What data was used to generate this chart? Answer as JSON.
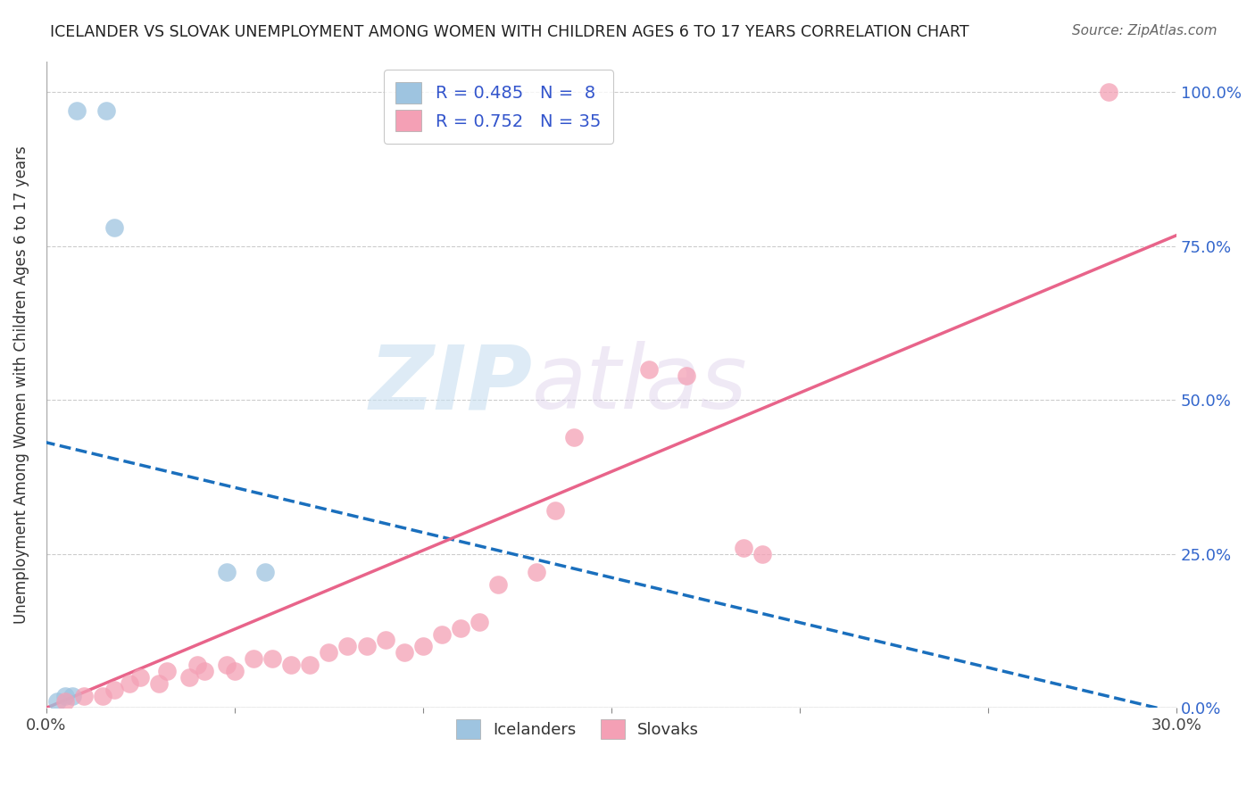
{
  "title": "ICELANDER VS SLOVAK UNEMPLOYMENT AMONG WOMEN WITH CHILDREN AGES 6 TO 17 YEARS CORRELATION CHART",
  "source": "Source: ZipAtlas.com",
  "ylabel": "Unemployment Among Women with Children Ages 6 to 17 years",
  "x_min": 0.0,
  "x_max": 0.3,
  "y_min": 0.0,
  "y_max": 1.05,
  "y_ticks": [
    0.0,
    0.25,
    0.5,
    0.75,
    1.0
  ],
  "y_tick_labels": [
    "0.0%",
    "25.0%",
    "50.0%",
    "75.0%",
    "100.0%"
  ],
  "iceland_R": 0.485,
  "iceland_N": 8,
  "slovak_R": 0.752,
  "slovak_N": 35,
  "iceland_color": "#9ec4e0",
  "slovak_color": "#f4a0b5",
  "iceland_line_color": "#1a6fbd",
  "slovak_line_color": "#e8648a",
  "iceland_line_style": "--",
  "legend_text_color": "#3355cc",
  "watermark_zip": "ZIP",
  "watermark_atlas": "atlas",
  "iceland_points": [
    [
      0.008,
      0.97
    ],
    [
      0.016,
      0.97
    ],
    [
      0.018,
      0.78
    ],
    [
      0.048,
      0.22
    ],
    [
      0.058,
      0.22
    ],
    [
      0.005,
      0.02
    ],
    [
      0.007,
      0.02
    ],
    [
      0.003,
      0.01
    ]
  ],
  "slovak_points": [
    [
      0.005,
      0.01
    ],
    [
      0.01,
      0.02
    ],
    [
      0.015,
      0.02
    ],
    [
      0.018,
      0.03
    ],
    [
      0.022,
      0.04
    ],
    [
      0.025,
      0.05
    ],
    [
      0.03,
      0.04
    ],
    [
      0.032,
      0.06
    ],
    [
      0.038,
      0.05
    ],
    [
      0.04,
      0.07
    ],
    [
      0.042,
      0.06
    ],
    [
      0.048,
      0.07
    ],
    [
      0.05,
      0.06
    ],
    [
      0.055,
      0.08
    ],
    [
      0.06,
      0.08
    ],
    [
      0.065,
      0.07
    ],
    [
      0.07,
      0.07
    ],
    [
      0.075,
      0.09
    ],
    [
      0.08,
      0.1
    ],
    [
      0.085,
      0.1
    ],
    [
      0.09,
      0.11
    ],
    [
      0.095,
      0.09
    ],
    [
      0.1,
      0.1
    ],
    [
      0.105,
      0.12
    ],
    [
      0.11,
      0.13
    ],
    [
      0.115,
      0.14
    ],
    [
      0.12,
      0.2
    ],
    [
      0.13,
      0.22
    ],
    [
      0.135,
      0.32
    ],
    [
      0.14,
      0.44
    ],
    [
      0.16,
      0.55
    ],
    [
      0.17,
      0.54
    ],
    [
      0.185,
      0.26
    ],
    [
      0.19,
      0.25
    ],
    [
      0.282,
      1.0
    ]
  ],
  "figsize": [
    14.06,
    8.92
  ],
  "dpi": 100
}
